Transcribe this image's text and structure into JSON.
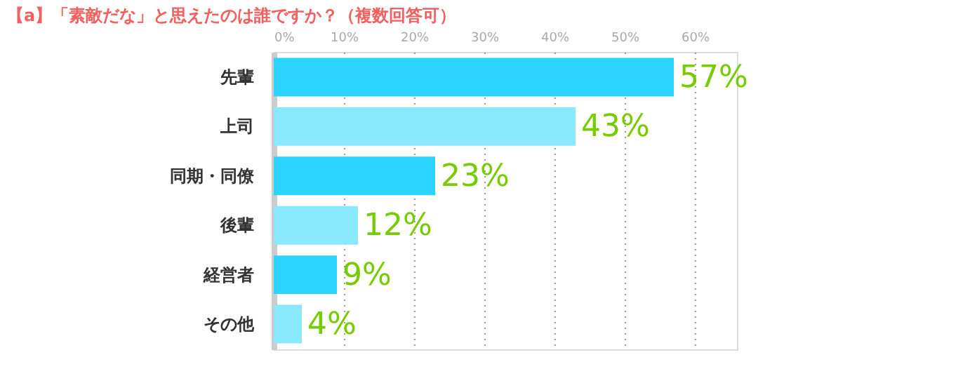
{
  "chart_data": {
    "type": "bar",
    "orientation": "horizontal",
    "title": "【a】「素敵だな」と思えたのは誰ですか？（複数回答可）",
    "categories": [
      "先輩",
      "上司",
      "同期・同僚",
      "後輩",
      "経営者",
      "その他"
    ],
    "values": [
      57,
      43,
      23,
      12,
      9,
      4
    ],
    "colors": [
      "#2ad4ff",
      "#8ae8ff",
      "#2ad4ff",
      "#8ae8ff",
      "#2ad4ff",
      "#8ae8ff"
    ],
    "value_labels": [
      "57%",
      "43%",
      "23%",
      "12%",
      "9%",
      "4%"
    ],
    "xlim": [
      0,
      66
    ],
    "xticks": [
      {
        "value": 0,
        "label": "0%"
      },
      {
        "value": 10,
        "label": "10%"
      },
      {
        "value": 20,
        "label": "20%"
      },
      {
        "value": 30,
        "label": "30%"
      },
      {
        "value": 40,
        "label": "40%"
      },
      {
        "value": 50,
        "label": "50%"
      },
      {
        "value": 60,
        "label": "60%"
      }
    ],
    "grid": "x"
  }
}
